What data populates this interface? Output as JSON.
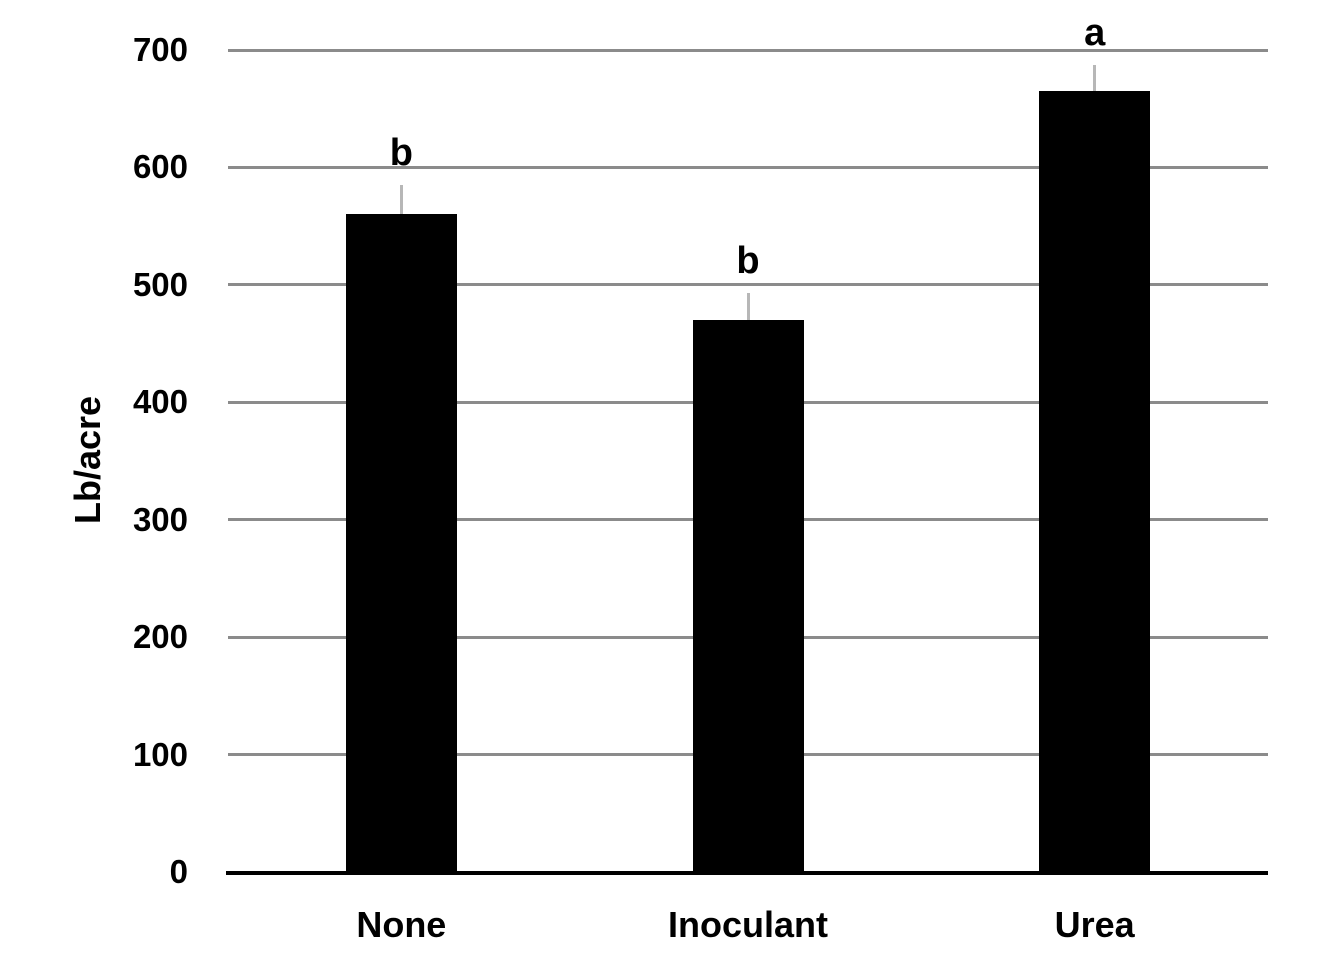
{
  "chart_data": {
    "type": "bar",
    "title": "",
    "xlabel": "",
    "ylabel": "Lb/acre",
    "categories": [
      "None",
      "Inoculant",
      "Urea"
    ],
    "values": [
      560,
      470,
      665
    ],
    "error_upper": [
      25,
      23,
      22
    ],
    "significance_letters": [
      "b",
      "b",
      "a"
    ],
    "yticks": [
      0,
      100,
      200,
      300,
      400,
      500,
      600,
      700
    ],
    "ylim": [
      0,
      700
    ],
    "grid": "horizontal",
    "legend": "none",
    "colors": {
      "bar": "#000000",
      "gridline": "#8b8b8b",
      "axis_line": "#000000",
      "error_bar": "#b7b7b7",
      "text": "#000000",
      "background": "#ffffff"
    }
  }
}
